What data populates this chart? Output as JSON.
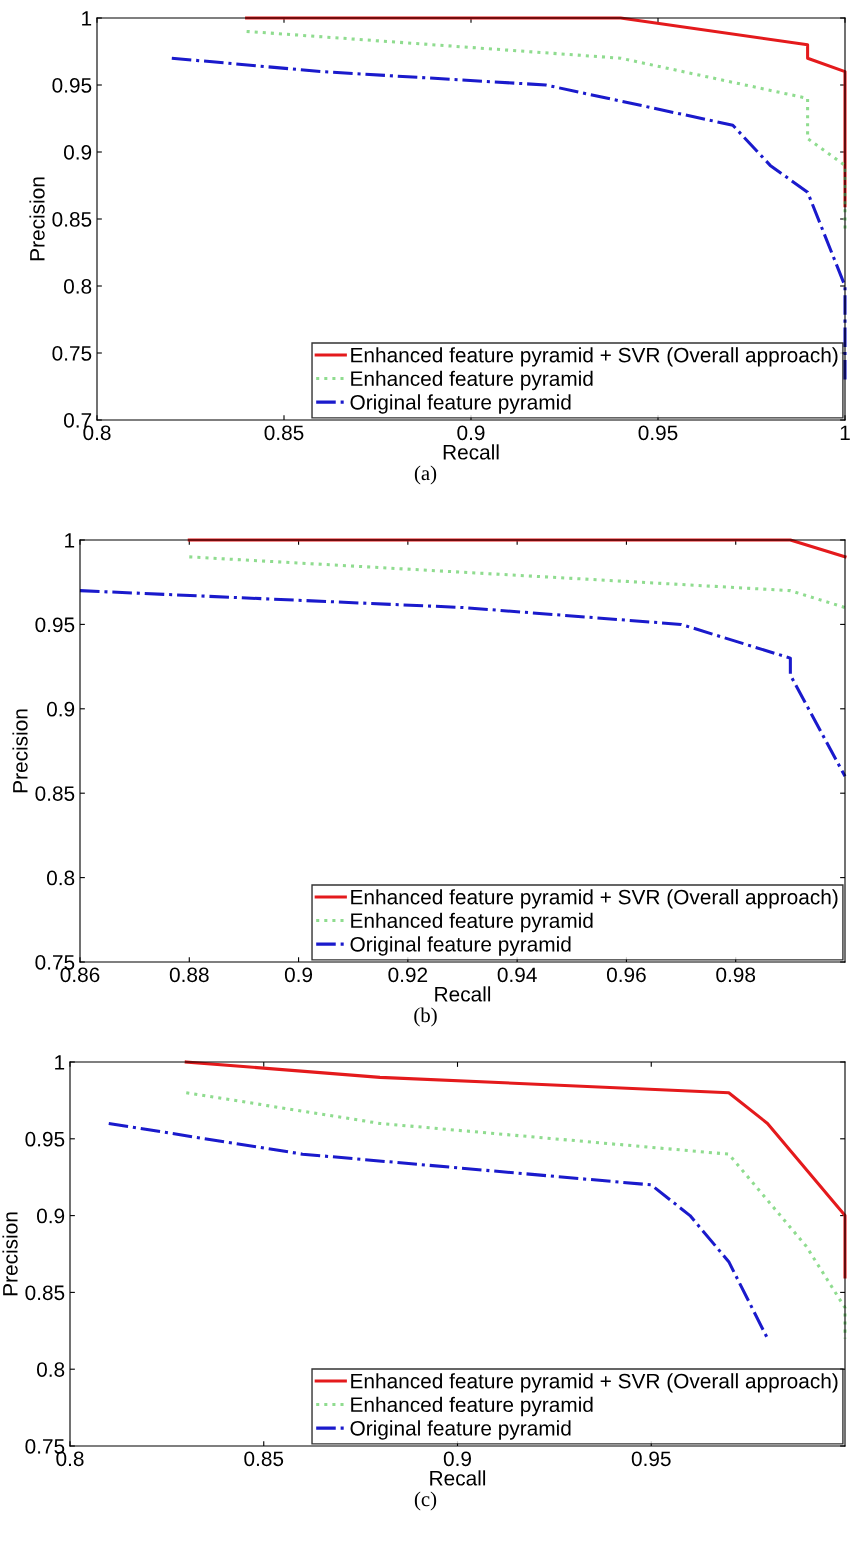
{
  "chart_data": [
    {
      "type": "line",
      "xlabel": "Recall",
      "ylabel": "Precision",
      "annotations": [
        "(a)"
      ],
      "xlim": [
        0.8,
        1
      ],
      "xticks": [
        0.8,
        0.85,
        0.9,
        0.95,
        1
      ],
      "ylim": [
        0.7,
        1
      ],
      "yticks": [
        0.7,
        0.75,
        0.8,
        0.85,
        0.9,
        0.95,
        1
      ],
      "grid": false,
      "legend": "bottom right",
      "marker": "none",
      "series": [
        {
          "name": "Enhanced feature pyramid + SVR (Overall approach)",
          "color": "#e41a1c",
          "line_style": "solid",
          "x": [
            0.84,
            0.94,
            0.99,
            0.99,
            1.0,
            1.0
          ],
          "values": [
            1.0,
            1.0,
            0.98,
            0.97,
            0.96,
            0.86
          ]
        },
        {
          "name": "Enhanced feature pyramid",
          "color": "#8fdc8f",
          "line_style": "dotted",
          "x": [
            0.84,
            0.94,
            0.99,
            0.99,
            1.0,
            1.0
          ],
          "values": [
            0.99,
            0.97,
            0.94,
            0.91,
            0.89,
            0.84
          ]
        },
        {
          "name": "Original feature pyramid",
          "color": "#1a1acc",
          "line_style": "dashdot",
          "x": [
            0.82,
            0.86,
            0.92,
            0.97,
            0.98,
            0.99,
            1.0,
            1.0
          ],
          "values": [
            0.97,
            0.96,
            0.95,
            0.92,
            0.89,
            0.87,
            0.8,
            0.73
          ]
        }
      ]
    },
    {
      "type": "line",
      "xlabel": "Recall",
      "ylabel": "Precision",
      "annotations": [
        "(b)"
      ],
      "xlim": [
        0.86,
        1
      ],
      "xticks": [
        0.86,
        0.88,
        0.9,
        0.92,
        0.94,
        0.96,
        0.98
      ],
      "ylim": [
        0.75,
        1
      ],
      "yticks": [
        0.75,
        0.8,
        0.85,
        0.9,
        0.95,
        1
      ],
      "grid": false,
      "legend": "bottom right",
      "marker": "none",
      "series": [
        {
          "name": "Enhanced feature pyramid + SVR (Overall approach)",
          "color": "#e41a1c",
          "line_style": "solid",
          "x": [
            0.88,
            0.99,
            1.0
          ],
          "values": [
            1.0,
            1.0,
            0.99
          ]
        },
        {
          "name": "Enhanced feature pyramid",
          "color": "#8fdc8f",
          "line_style": "dotted",
          "x": [
            0.88,
            0.99,
            1.0
          ],
          "values": [
            0.99,
            0.97,
            0.96
          ]
        },
        {
          "name": "Original feature pyramid",
          "color": "#1a1acc",
          "line_style": "dashdot",
          "x": [
            0.86,
            0.93,
            0.97,
            0.99,
            0.99,
            1.0
          ],
          "values": [
            0.97,
            0.96,
            0.95,
            0.93,
            0.92,
            0.86
          ]
        }
      ]
    },
    {
      "type": "line",
      "xlabel": "Recall",
      "ylabel": "Precision",
      "annotations": [
        "(c)"
      ],
      "xlim": [
        0.8,
        1
      ],
      "xticks": [
        0.8,
        0.85,
        0.9,
        0.95
      ],
      "ylim": [
        0.75,
        1
      ],
      "yticks": [
        0.75,
        0.8,
        0.85,
        0.9,
        0.95,
        1
      ],
      "grid": false,
      "legend": "bottom right",
      "marker": "none",
      "series": [
        {
          "name": "Enhanced feature pyramid + SVR (Overall approach)",
          "color": "#e41a1c",
          "line_style": "solid",
          "x": [
            0.83,
            0.88,
            0.97,
            0.98,
            1.0,
            1.0
          ],
          "values": [
            1.0,
            0.99,
            0.98,
            0.96,
            0.9,
            0.86
          ]
        },
        {
          "name": "Enhanced feature pyramid",
          "color": "#8fdc8f",
          "line_style": "dotted",
          "x": [
            0.83,
            0.88,
            0.97,
            0.99,
            1.0,
            1.0
          ],
          "values": [
            0.98,
            0.96,
            0.94,
            0.88,
            0.84,
            0.82
          ]
        },
        {
          "name": "Original feature pyramid",
          "color": "#1a1acc",
          "line_style": "dashdot",
          "x": [
            0.81,
            0.86,
            0.95,
            0.96,
            0.97,
            0.98
          ],
          "values": [
            0.96,
            0.94,
            0.92,
            0.9,
            0.87,
            0.82
          ]
        }
      ]
    }
  ]
}
